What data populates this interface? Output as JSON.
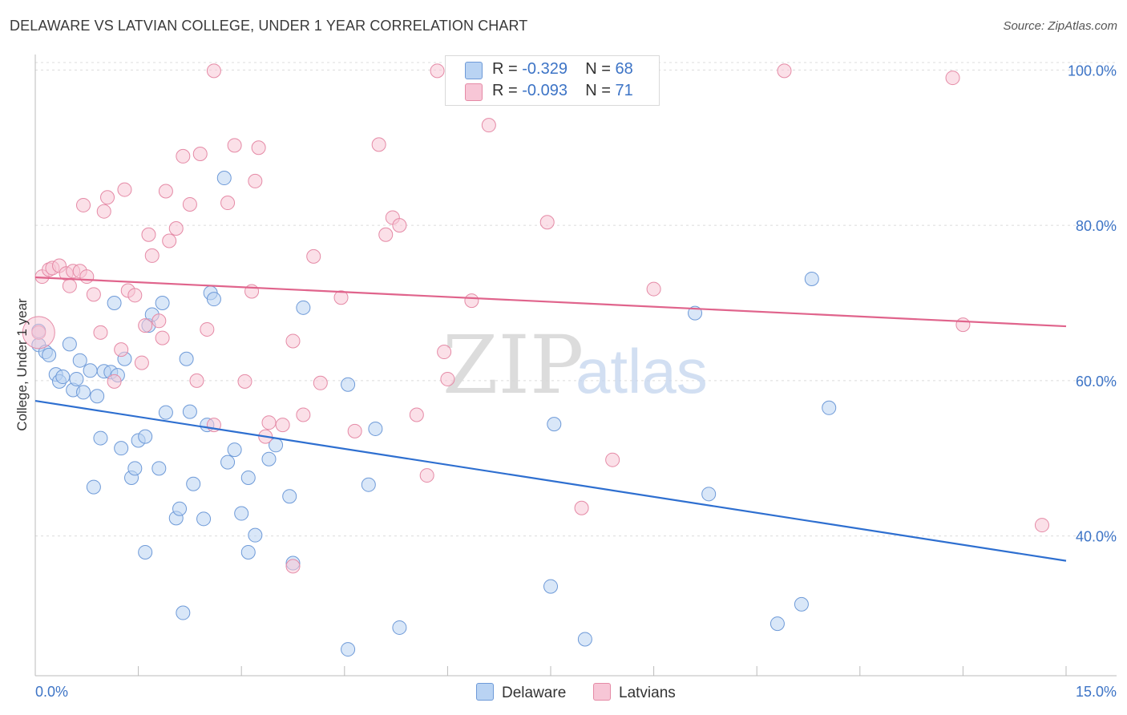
{
  "title": "DELAWARE VS LATVIAN COLLEGE, UNDER 1 YEAR CORRELATION CHART",
  "source": "Source: ZipAtlas.com",
  "watermark": {
    "zip": "ZIP",
    "atlas": "atlas"
  },
  "legend": {
    "r_label": "R =",
    "n_label": "N =",
    "delaware": {
      "r": "-0.329",
      "n": "68"
    },
    "latvians": {
      "r": "-0.093",
      "n": "71"
    }
  },
  "colors": {
    "blue_fill": "#b9d3f3",
    "blue_stroke": "#6e9ad8",
    "blue_line": "#2e6fd0",
    "pink_fill": "#f7c6d6",
    "pink_stroke": "#e58aa6",
    "pink_line": "#e0648c",
    "axis_text": "#3d74c6"
  },
  "chart_data": {
    "type": "scatter",
    "title": "DELAWARE VS LATVIAN COLLEGE, UNDER 1 YEAR CORRELATION CHART",
    "xlabel": "",
    "ylabel": "College, Under 1 year",
    "xlim": [
      0,
      15
    ],
    "ylim": [
      22,
      102
    ],
    "x_tick_labels": [
      "0.0%",
      "15.0%"
    ],
    "y_ticks": [
      40,
      60,
      80,
      100
    ],
    "y_tick_labels": [
      "40.0%",
      "60.0%",
      "80.0%",
      "100.0%"
    ],
    "series": [
      {
        "name": "Delaware",
        "color": "#6e9ad8",
        "trend": {
          "x": [
            0,
            15
          ],
          "y": [
            57.4,
            36.8
          ]
        },
        "points": [
          [
            0.05,
            66.4
          ],
          [
            0.05,
            64.6
          ],
          [
            0.15,
            63.7
          ],
          [
            0.2,
            63.3
          ],
          [
            0.3,
            60.8
          ],
          [
            0.35,
            59.9
          ],
          [
            0.4,
            60.5
          ],
          [
            0.5,
            64.7
          ],
          [
            0.55,
            58.8
          ],
          [
            0.6,
            60.2
          ],
          [
            0.65,
            62.6
          ],
          [
            0.7,
            58.5
          ],
          [
            0.8,
            61.3
          ],
          [
            0.9,
            58
          ],
          [
            0.85,
            46.3
          ],
          [
            0.95,
            52.6
          ],
          [
            1.0,
            61.2
          ],
          [
            1.1,
            61.1
          ],
          [
            1.15,
            70
          ],
          [
            1.2,
            60.7
          ],
          [
            1.25,
            51.3
          ],
          [
            1.3,
            62.8
          ],
          [
            1.4,
            47.5
          ],
          [
            1.45,
            48.7
          ],
          [
            1.5,
            52.3
          ],
          [
            1.6,
            52.8
          ],
          [
            1.6,
            37.9
          ],
          [
            1.65,
            67.1
          ],
          [
            1.7,
            68.5
          ],
          [
            1.8,
            48.7
          ],
          [
            1.85,
            70
          ],
          [
            1.9,
            55.9
          ],
          [
            2.05,
            42.3
          ],
          [
            2.1,
            43.5
          ],
          [
            2.2,
            62.8
          ],
          [
            2.25,
            56
          ],
          [
            2.3,
            46.7
          ],
          [
            2.45,
            42.2
          ],
          [
            2.5,
            54.3
          ],
          [
            2.55,
            71.3
          ],
          [
            2.6,
            70.5
          ],
          [
            2.75,
            86.1
          ],
          [
            2.8,
            49.5
          ],
          [
            2.9,
            51.1
          ],
          [
            3.0,
            42.9
          ],
          [
            3.1,
            47.5
          ],
          [
            3.1,
            37.9
          ],
          [
            3.2,
            40.1
          ],
          [
            3.4,
            49.9
          ],
          [
            3.5,
            51.7
          ],
          [
            3.7,
            45.1
          ],
          [
            3.75,
            36.5
          ],
          [
            3.9,
            69.4
          ],
          [
            4.55,
            59.5
          ],
          [
            4.55,
            25.4
          ],
          [
            4.85,
            46.6
          ],
          [
            4.95,
            53.8
          ],
          [
            5.3,
            28.2
          ],
          [
            7.5,
            33.5
          ],
          [
            7.55,
            54.4
          ],
          [
            8.0,
            26.7
          ],
          [
            9.6,
            68.7
          ],
          [
            9.8,
            45.4
          ],
          [
            10.8,
            28.7
          ],
          [
            11.15,
            31.2
          ],
          [
            11.3,
            73.1
          ],
          [
            11.55,
            56.5
          ],
          [
            2.15,
            30.1
          ]
        ]
      },
      {
        "name": "Latvians",
        "color": "#e58aa6",
        "trend": {
          "x": [
            0,
            15
          ],
          "y": [
            73.3,
            67.0
          ]
        },
        "points": [
          [
            0.05,
            66.2
          ],
          [
            0.1,
            73.4
          ],
          [
            0.2,
            74.3
          ],
          [
            0.25,
            74.5
          ],
          [
            0.35,
            74.8
          ],
          [
            0.45,
            73.8
          ],
          [
            0.5,
            72.2
          ],
          [
            0.55,
            74.1
          ],
          [
            0.65,
            74.1
          ],
          [
            0.75,
            73.4
          ],
          [
            0.7,
            82.6
          ],
          [
            0.85,
            71.1
          ],
          [
            0.95,
            66.2
          ],
          [
            1.0,
            81.8
          ],
          [
            1.05,
            83.6
          ],
          [
            1.15,
            59.9
          ],
          [
            1.25,
            64
          ],
          [
            1.3,
            84.6
          ],
          [
            1.35,
            71.6
          ],
          [
            1.45,
            71
          ],
          [
            1.55,
            62.3
          ],
          [
            1.6,
            67.1
          ],
          [
            1.65,
            78.8
          ],
          [
            1.7,
            76.1
          ],
          [
            1.8,
            67.7
          ],
          [
            1.85,
            65.5
          ],
          [
            1.9,
            84.4
          ],
          [
            1.95,
            78
          ],
          [
            2.05,
            79.6
          ],
          [
            2.15,
            88.9
          ],
          [
            2.25,
            82.7
          ],
          [
            2.35,
            60
          ],
          [
            2.4,
            89.2
          ],
          [
            2.5,
            66.6
          ],
          [
            2.6,
            54.3
          ],
          [
            2.6,
            99.9
          ],
          [
            2.8,
            82.9
          ],
          [
            2.9,
            90.3
          ],
          [
            3.05,
            59.9
          ],
          [
            3.15,
            71.5
          ],
          [
            3.2,
            85.7
          ],
          [
            3.25,
            90
          ],
          [
            3.35,
            52.8
          ],
          [
            3.4,
            54.6
          ],
          [
            3.6,
            54.3
          ],
          [
            3.75,
            65.1
          ],
          [
            3.75,
            36.1
          ],
          [
            3.9,
            55.6
          ],
          [
            4.05,
            76
          ],
          [
            4.15,
            59.7
          ],
          [
            4.45,
            70.7
          ],
          [
            4.65,
            53.5
          ],
          [
            5.0,
            90.4
          ],
          [
            5.1,
            78.8
          ],
          [
            5.2,
            81
          ],
          [
            5.3,
            80
          ],
          [
            5.55,
            55.6
          ],
          [
            5.7,
            47.8
          ],
          [
            5.85,
            99.9
          ],
          [
            5.95,
            63.7
          ],
          [
            6.0,
            60.2
          ],
          [
            6.35,
            70.3
          ],
          [
            6.6,
            92.9
          ],
          [
            7.45,
            80.4
          ],
          [
            7.95,
            43.6
          ],
          [
            8.4,
            49.8
          ],
          [
            9.0,
            71.8
          ],
          [
            10.9,
            99.9
          ],
          [
            13.35,
            99
          ],
          [
            13.5,
            67.2
          ],
          [
            14.65,
            41.4
          ]
        ]
      }
    ]
  },
  "bottom_legend": {
    "delaware": "Delaware",
    "latvians": "Latvians"
  }
}
